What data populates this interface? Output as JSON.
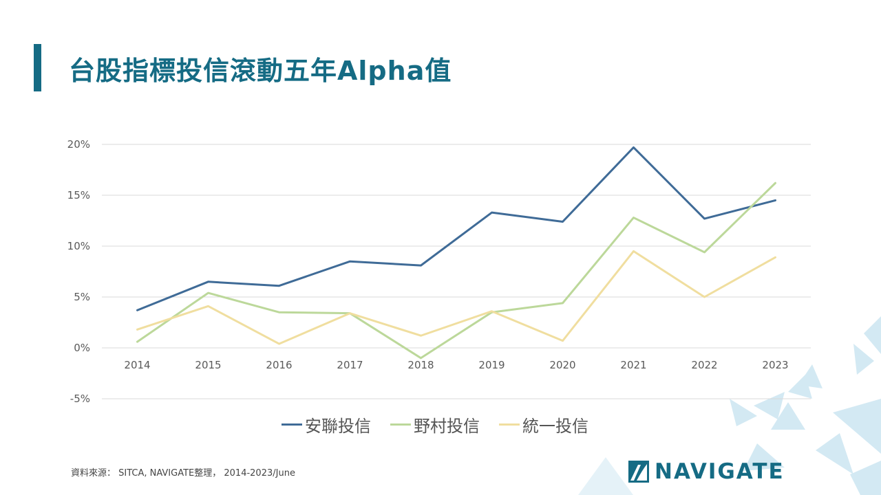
{
  "title": "台股指標投信滾動五年Alpha值",
  "source": "資料來源： SITCA, NAVIGATE整理， 2014-2023/June",
  "brand": "NAVIGATE",
  "colors": {
    "accent": "#156b84",
    "grid": "#d9d9d9"
  },
  "chart_data": {
    "type": "line",
    "categories": [
      "2014",
      "2015",
      "2016",
      "2017",
      "2018",
      "2019",
      "2020",
      "2021",
      "2022",
      "2023"
    ],
    "ylim": [
      -5,
      20
    ],
    "yticks": [
      20,
      15,
      10,
      5,
      0,
      -5
    ],
    "ytick_labels": [
      "20%",
      "15%",
      "10%",
      "5%",
      "0%",
      "-5%"
    ],
    "grid": true,
    "legend_position": "bottom",
    "series": [
      {
        "name": "安聯投信",
        "color": "#3f6b97",
        "values": [
          3.7,
          6.5,
          6.1,
          8.5,
          8.1,
          13.3,
          12.4,
          19.7,
          12.7,
          14.5
        ]
      },
      {
        "name": "野村投信",
        "color": "#bcd89a",
        "values": [
          0.6,
          5.4,
          3.5,
          3.4,
          -1.0,
          3.5,
          4.4,
          12.8,
          9.4,
          16.2
        ]
      },
      {
        "name": "統一投信",
        "color": "#f0de9f",
        "values": [
          1.8,
          4.1,
          0.4,
          3.4,
          1.2,
          3.6,
          0.7,
          9.5,
          5.0,
          8.9
        ]
      }
    ]
  }
}
